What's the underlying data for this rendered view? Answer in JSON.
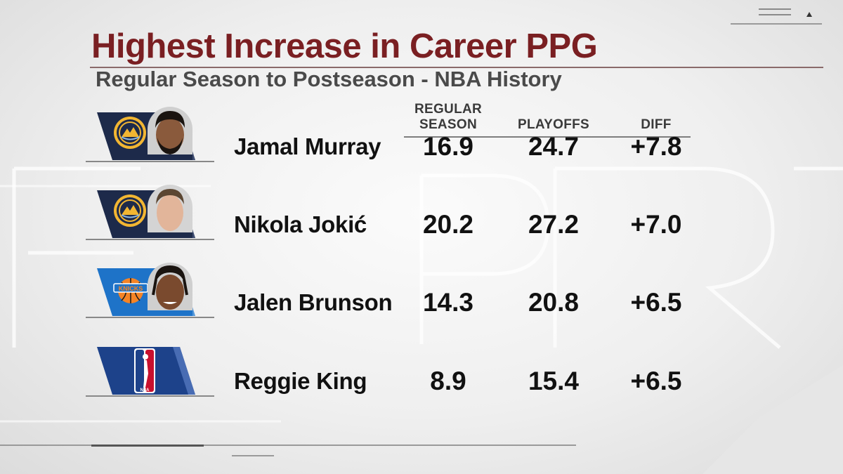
{
  "chart_data": {
    "type": "table",
    "title": "Highest Increase in Career PPG",
    "subtitle": "Regular Season to Postseason - NBA History",
    "columns": [
      {
        "key": "regular",
        "label_lines": [
          "REGULAR",
          "SEASON"
        ]
      },
      {
        "key": "playoffs",
        "label_lines": [
          "PLAYOFFS"
        ]
      },
      {
        "key": "diff",
        "label_lines": [
          "DIFF"
        ]
      }
    ],
    "rows": [
      {
        "player": "Jamal Murray",
        "team_logo": "nuggets-logo",
        "regular": "16.9",
        "playoffs": "24.7",
        "diff": "+7.8"
      },
      {
        "player": "Nikola Jokić",
        "team_logo": "nuggets-logo",
        "regular": "20.2",
        "playoffs": "27.2",
        "diff": "+7.0"
      },
      {
        "player": "Jalen Brunson",
        "team_logo": "knicks-logo",
        "regular": "14.3",
        "playoffs": "20.8",
        "diff": "+6.5"
      },
      {
        "player": "Reggie King",
        "team_logo": "nba-logo",
        "regular": "8.9",
        "playoffs": "15.4",
        "diff": "+6.5"
      }
    ]
  },
  "colors": {
    "title": "#7a1f22",
    "subtitle": "#4a4a4a",
    "nuggets_navy": "#1d2a4a",
    "nuggets_gold": "#f2b632",
    "knicks_blue": "#1e73c8",
    "knicks_orange": "#f58426",
    "nba_blue": "#1d428a",
    "nba_red": "#c8102e"
  }
}
